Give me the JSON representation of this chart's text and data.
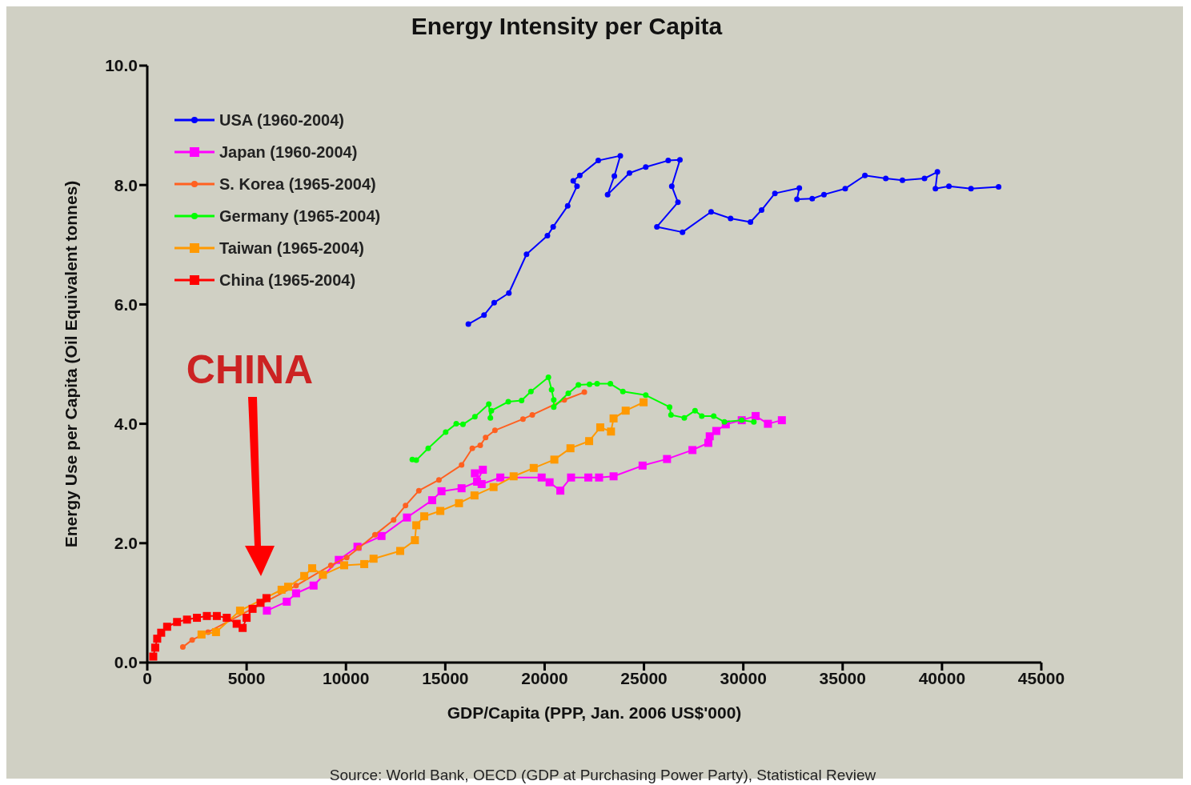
{
  "chart_data": {
    "type": "line",
    "title": "Energy Intensity per Capita",
    "xlabel": "GDP/Capita (PPP, Jan. 2006 US$'000)",
    "ylabel": "Energy Use per Capita (Oil Equivalent tonnes)",
    "xlim": [
      0,
      45000
    ],
    "xticks": [
      0,
      5000,
      10000,
      15000,
      20000,
      25000,
      30000,
      35000,
      40000,
      45000
    ],
    "ylim": [
      0,
      10
    ],
    "yticks": [
      {
        "value": 0,
        "label": "0.0"
      },
      {
        "value": 2,
        "label": "2.0"
      },
      {
        "value": 4,
        "label": "4.0"
      },
      {
        "value": 6,
        "label": "6.0"
      },
      {
        "value": 8,
        "label": "8.0"
      },
      {
        "value": 10,
        "label": "10.0"
      }
    ],
    "grid": false,
    "legend": "top left",
    "series": [
      {
        "name": "USA (1960-2004)",
        "color": "#0000ff",
        "marker": "circle",
        "x": [
          16160,
          16950,
          17460,
          18200,
          19090,
          20140,
          20430,
          21160,
          21630,
          21440,
          21770,
          22700,
          23810,
          23510,
          23170,
          24270,
          25090,
          26220,
          26810,
          26400,
          26710,
          25650,
          26940,
          28380,
          29360,
          30360,
          30920,
          31590,
          32820,
          32700,
          33470,
          34060,
          35130,
          36120,
          37170,
          38010,
          39120,
          39770,
          39670,
          40350,
          41460,
          42850
        ],
        "values": [
          5.67,
          5.82,
          6.03,
          6.19,
          6.84,
          7.15,
          7.3,
          7.65,
          7.98,
          8.07,
          8.16,
          8.41,
          8.49,
          8.15,
          7.84,
          8.2,
          8.3,
          8.41,
          8.42,
          7.98,
          7.71,
          7.3,
          7.21,
          7.55,
          7.44,
          7.38,
          7.58,
          7.86,
          7.95,
          7.76,
          7.77,
          7.84,
          7.94,
          8.16,
          8.11,
          8.08,
          8.11,
          8.22,
          7.94,
          7.98,
          7.94,
          7.97
        ]
      },
      {
        "name": "Japan (1960-2004)",
        "color": "#ff00ff",
        "marker": "square",
        "x": [
          6020,
          7020,
          7490,
          8370,
          9640,
          10580,
          11790,
          13070,
          14340,
          14810,
          15820,
          16600,
          16890,
          16490,
          16830,
          17770,
          19850,
          20250,
          20790,
          21330,
          22200,
          22740,
          23470,
          24930,
          26160,
          27440,
          28240,
          28310,
          28640,
          29120,
          29920,
          30620,
          31240,
          31940
        ],
        "values": [
          0.87,
          1.02,
          1.16,
          1.29,
          1.72,
          1.94,
          2.12,
          2.43,
          2.72,
          2.87,
          2.92,
          3.03,
          3.23,
          3.17,
          2.99,
          3.1,
          3.1,
          3.02,
          2.88,
          3.1,
          3.1,
          3.1,
          3.12,
          3.3,
          3.41,
          3.56,
          3.68,
          3.79,
          3.88,
          3.99,
          4.06,
          4.13,
          4.0,
          4.06
        ]
      },
      {
        "name": "S. Korea (1965-2004)",
        "color": "#ff6020",
        "marker": "circle",
        "x": [
          1790,
          2260,
          3060,
          7490,
          9240,
          10040,
          10650,
          11460,
          12400,
          13000,
          13670,
          14680,
          15820,
          16360,
          16760,
          17030,
          17500,
          18910,
          19380,
          20990,
          22000
        ],
        "values": [
          0.26,
          0.38,
          0.51,
          1.29,
          1.63,
          1.76,
          1.92,
          2.14,
          2.39,
          2.63,
          2.88,
          3.06,
          3.31,
          3.59,
          3.64,
          3.77,
          3.89,
          4.08,
          4.15,
          4.4,
          4.53
        ]
      },
      {
        "name": "Germany (1965-2004)",
        "color": "#00ff00",
        "marker": "circle",
        "x": [
          13340,
          13540,
          14140,
          15020,
          15550,
          15890,
          16490,
          17190,
          17270,
          17320,
          18170,
          18840,
          19310,
          20190,
          20350,
          20460,
          20460,
          21190,
          21700,
          22260,
          22640,
          23310,
          23940,
          25090,
          26290,
          26360,
          27030,
          27570,
          27910,
          28510,
          29050,
          29920,
          30530
        ],
        "values": [
          3.4,
          3.39,
          3.59,
          3.86,
          4.0,
          3.99,
          4.12,
          4.33,
          4.1,
          4.22,
          4.37,
          4.39,
          4.54,
          4.78,
          4.57,
          4.4,
          4.28,
          4.51,
          4.65,
          4.66,
          4.67,
          4.67,
          4.54,
          4.48,
          4.28,
          4.15,
          4.1,
          4.22,
          4.13,
          4.13,
          4.03,
          4.06,
          4.03
        ]
      },
      {
        "name": "Taiwan (1965-2004)",
        "color": "#ff9900",
        "marker": "square",
        "x": [
          2730,
          3460,
          4670,
          6760,
          7090,
          7900,
          8300,
          8840,
          9910,
          10920,
          11390,
          12730,
          13470,
          13540,
          13940,
          14750,
          15690,
          16470,
          17430,
          18440,
          19450,
          20490,
          21300,
          22240,
          22800,
          23340,
          23470,
          24080,
          24980
        ],
        "values": [
          0.47,
          0.51,
          0.87,
          1.22,
          1.27,
          1.45,
          1.58,
          1.47,
          1.63,
          1.65,
          1.74,
          1.87,
          2.05,
          2.3,
          2.45,
          2.54,
          2.67,
          2.8,
          2.94,
          3.12,
          3.26,
          3.4,
          3.59,
          3.71,
          3.94,
          3.87,
          4.09,
          4.22,
          4.36
        ]
      },
      {
        "name": "China (1965-2004)",
        "color": "#ff0000",
        "marker": "square",
        "x": [
          300,
          400,
          500,
          700,
          1000,
          1500,
          2000,
          2500,
          3000,
          3500,
          4000,
          4500,
          4800,
          5000,
          5300,
          5700,
          6000
        ],
        "values": [
          0.1,
          0.25,
          0.4,
          0.5,
          0.6,
          0.68,
          0.72,
          0.75,
          0.78,
          0.78,
          0.75,
          0.65,
          0.58,
          0.75,
          0.9,
          1.0,
          1.08
        ]
      }
    ],
    "annotations": [
      "CHINA",
      "Source: World Bank, OECD (GDP at Purchasing Power Party), Statistical Review"
    ]
  }
}
